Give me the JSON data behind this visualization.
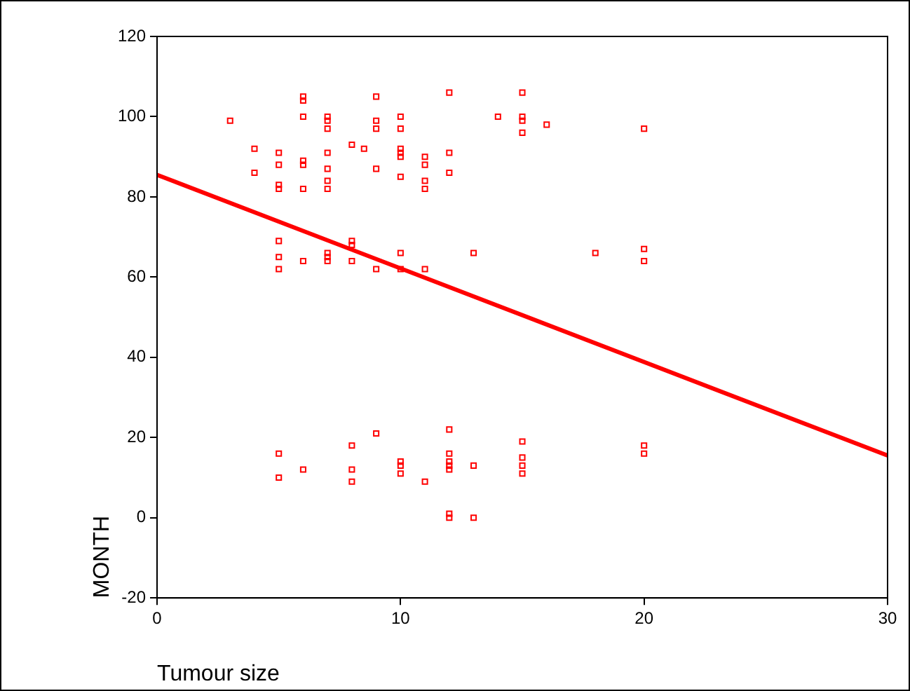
{
  "chart_data": {
    "type": "scatter",
    "xlabel": "Tumour size",
    "ylabel": "MONTH",
    "xlim": [
      0,
      30
    ],
    "xticks": [
      0,
      10,
      20,
      30
    ],
    "ylim": [
      -20,
      120
    ],
    "yticks": [
      -20,
      0,
      20,
      40,
      60,
      80,
      100,
      120
    ],
    "grid": false,
    "legend": false,
    "series": [
      {
        "color": "#ff0000",
        "marker": "square",
        "x": [
          3,
          4,
          4,
          5,
          5,
          5,
          5,
          5,
          5,
          5,
          5,
          5,
          6,
          6,
          6,
          6,
          6,
          6,
          6,
          6,
          7,
          7,
          7,
          7,
          7,
          7,
          7,
          7,
          7,
          7,
          8,
          8,
          8,
          8,
          8,
          8,
          8,
          8.5,
          9,
          9,
          9,
          9,
          9,
          9,
          10,
          10,
          10,
          10,
          10,
          10,
          10,
          10,
          10,
          10,
          10,
          11,
          11,
          11,
          11,
          11,
          11,
          12,
          12,
          12,
          12,
          12,
          12,
          12,
          12,
          12,
          12,
          13,
          13,
          13,
          14,
          15,
          15,
          15,
          15,
          15,
          15,
          15,
          15,
          16,
          18,
          20,
          20,
          20,
          20,
          20
        ],
        "values": [
          99,
          92,
          86,
          91,
          88,
          83,
          82,
          69,
          65,
          62,
          16,
          10,
          105,
          104,
          100,
          89,
          88,
          82,
          64,
          12,
          100,
          99,
          97,
          91,
          87,
          84,
          82,
          66,
          65,
          64,
          93,
          69,
          68,
          64,
          18,
          12,
          9,
          92,
          105,
          99,
          97,
          87,
          62,
          21,
          100,
          97,
          92,
          91,
          90,
          85,
          66,
          62,
          14,
          13,
          11,
          90,
          88,
          84,
          82,
          62,
          9,
          106,
          91,
          86,
          22,
          16,
          14,
          13,
          12,
          1,
          0,
          66,
          13,
          0,
          100,
          106,
          100,
          99,
          96,
          19,
          15,
          13,
          11,
          98,
          66,
          97,
          67,
          64,
          18,
          16
        ]
      },
      {
        "type": "line",
        "marker": "none",
        "color": "#ff0000",
        "x": [
          0,
          30
        ],
        "values": [
          85.5,
          15.5
        ]
      }
    ]
  }
}
